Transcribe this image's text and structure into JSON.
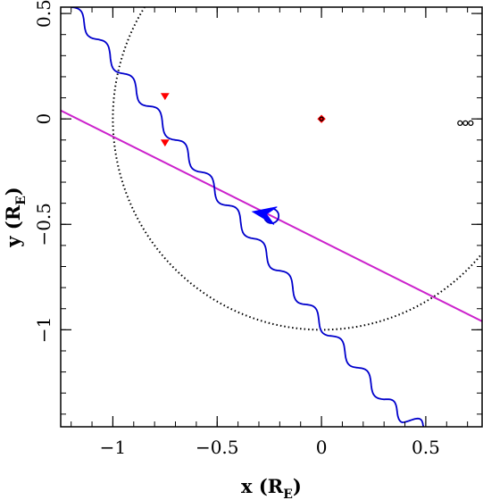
{
  "chart_data": {
    "type": "line",
    "title": "",
    "xlabel": "x (R",
    "xlabel_sub": "E",
    "xlabel_close": ")",
    "ylabel": "y (R",
    "ylabel_sub": "E",
    "ylabel_close": ")",
    "xlim": [
      -1.25,
      0.77
    ],
    "ylim": [
      -1.46,
      0.53
    ],
    "x_ticks": [
      -1,
      -0.5,
      0,
      0.5
    ],
    "x_tick_labels": [
      "−1",
      "−0.5",
      "0",
      "0.5"
    ],
    "y_ticks": [
      0.5,
      0,
      -0.5,
      -1
    ],
    "y_tick_labels": [
      "0.5",
      "0",
      "−0.5",
      "−1"
    ],
    "grid": false,
    "colors": {
      "source_trajectory": "#0000cc",
      "binary_axis": "#cc22cc",
      "einstein_ring": "#000000",
      "caustic": "#ff0000",
      "arrow": "#0000ff"
    },
    "series": [
      {
        "kind": "source-trajectory",
        "x": [
          -1.2,
          -1.1,
          -1.0,
          -0.9,
          -0.8,
          -0.7,
          -0.6,
          -0.5,
          -0.4,
          -0.3,
          -0.2,
          -0.1,
          0.0,
          0.1,
          0.2,
          0.3,
          0.4,
          0.5
        ],
        "y": [
          0.53,
          0.41,
          0.28,
          0.15,
          0.03,
          -0.1,
          -0.22,
          -0.35,
          -0.47,
          -0.6,
          -0.72,
          -0.85,
          -0.97,
          -1.09,
          -1.21,
          -1.33,
          -1.42,
          -1.46
        ]
      },
      {
        "kind": "binary-axis",
        "x": [
          -1.25,
          0.77
        ],
        "y": [
          0.04,
          -0.96
        ]
      },
      {
        "kind": "einstein-ring",
        "center": [
          0,
          0
        ],
        "radius": 1
      }
    ],
    "loop": {
      "center": [
        -0.24,
        -0.46
      ],
      "radius": 0.035
    },
    "arrow": {
      "tip": [
        -0.33,
        -0.44
      ],
      "direction_deg": 170
    },
    "caustics": [
      {
        "x": -0.75,
        "y": 0.11
      },
      {
        "x": -0.75,
        "y": -0.11
      },
      {
        "x": 0.0,
        "y": 0.0
      }
    ],
    "lens_points": [
      {
        "x": 0.0,
        "y": 0.0
      },
      {
        "x": 0.69,
        "y": -0.02
      },
      {
        "x": 0.69,
        "y": -0.02
      },
      {
        "x": 0.69,
        "y": -0.02
      }
    ]
  }
}
